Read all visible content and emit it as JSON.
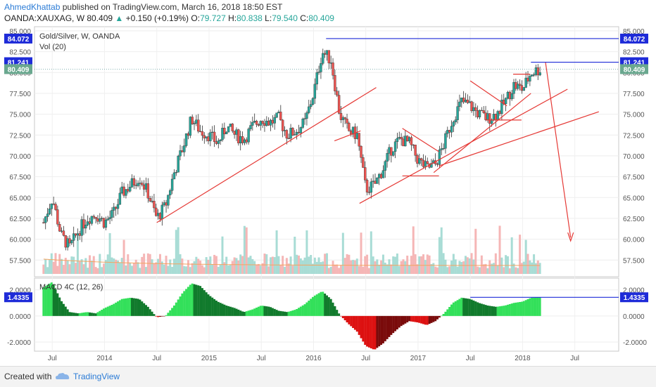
{
  "header": {
    "author": "AhmedKhattab",
    "published_text": "published on TradingView.com, March 16, 2018 18:50 EST",
    "symbol": "OANDA:XAUXAG, W",
    "last": "80.409",
    "change": "+0.150 (+0.19%)",
    "o_label": "O:",
    "o_value": "79.727",
    "h_label": "H:",
    "h_value": "80.838",
    "l_label": "L:",
    "l_value": "79.540",
    "c_label": "C:",
    "c_value": "80.409"
  },
  "footer": {
    "created_with": "Created with",
    "brand": "TradingView"
  },
  "colors": {
    "up": "#26a69a",
    "down": "#ef5350",
    "trend": "#e53935",
    "level": "#1e2bd8",
    "macd_bright": "#33e05a",
    "macd_dark": "#117a2c",
    "macd_red": "#dd1111",
    "macd_darkred": "#7a0b0b"
  },
  "chart_data": [
    {
      "type": "candlestick",
      "title": "Gold/Silver, W, OANDA",
      "volume_label": "Vol (20)",
      "ylim": [
        55.5,
        85.5
      ],
      "y_ticks": [
        "85.000",
        "82.500",
        "80.000",
        "77.500",
        "75.000",
        "72.500",
        "70.000",
        "67.500",
        "65.000",
        "62.500",
        "60.000",
        "57.500"
      ],
      "x_ticks": [
        "Jul",
        "2014",
        "Jul",
        "2015",
        "Jul",
        "2016",
        "Jul",
        "2017",
        "Jul",
        "2018",
        "Jul"
      ],
      "price_labels": {
        "resistance": "84.072",
        "recent_high": "81.241",
        "last": "80.409"
      },
      "anchors": [
        {
          "t": "2013-06",
          "c": 62.0
        },
        {
          "t": "2013-07",
          "c": 65.0
        },
        {
          "t": "2013-08",
          "c": 60.5
        },
        {
          "t": "2013-09",
          "c": 59.0
        },
        {
          "t": "2013-10",
          "c": 61.0
        },
        {
          "t": "2013-11",
          "c": 62.5
        },
        {
          "t": "2013-12",
          "c": 63.0
        },
        {
          "t": "2014-01",
          "c": 62.0
        },
        {
          "t": "2014-02",
          "c": 63.0
        },
        {
          "t": "2014-03",
          "c": 65.5
        },
        {
          "t": "2014-04",
          "c": 66.5
        },
        {
          "t": "2014-05",
          "c": 67.5
        },
        {
          "t": "2014-06",
          "c": 65.5
        },
        {
          "t": "2014-07",
          "c": 62.5
        },
        {
          "t": "2014-08",
          "c": 64.0
        },
        {
          "t": "2014-09",
          "c": 68.0
        },
        {
          "t": "2014-10",
          "c": 71.0
        },
        {
          "t": "2014-11",
          "c": 74.5
        },
        {
          "t": "2014-12",
          "c": 73.0
        },
        {
          "t": "2015-01",
          "c": 72.5
        },
        {
          "t": "2015-02",
          "c": 71.5
        },
        {
          "t": "2015-03",
          "c": 73.5
        },
        {
          "t": "2015-04",
          "c": 72.5
        },
        {
          "t": "2015-05",
          "c": 72.0
        },
        {
          "t": "2015-06",
          "c": 73.5
        },
        {
          "t": "2015-07",
          "c": 74.5
        },
        {
          "t": "2015-08",
          "c": 74.0
        },
        {
          "t": "2015-09",
          "c": 74.5
        },
        {
          "t": "2015-10",
          "c": 72.5
        },
        {
          "t": "2015-11",
          "c": 73.0
        },
        {
          "t": "2015-12",
          "c": 74.0
        },
        {
          "t": "2016-01",
          "c": 77.5
        },
        {
          "t": "2016-02",
          "c": 82.5
        },
        {
          "t": "2016-03",
          "c": 81.5
        },
        {
          "t": "2016-04",
          "c": 75.0
        },
        {
          "t": "2016-05",
          "c": 73.0
        },
        {
          "t": "2016-06",
          "c": 72.5
        },
        {
          "t": "2016-07",
          "c": 66.0
        },
        {
          "t": "2016-08",
          "c": 66.5
        },
        {
          "t": "2016-09",
          "c": 68.5
        },
        {
          "t": "2016-10",
          "c": 71.0
        },
        {
          "t": "2016-11",
          "c": 72.0
        },
        {
          "t": "2016-12",
          "c": 71.5
        },
        {
          "t": "2017-01",
          "c": 69.5
        },
        {
          "t": "2017-02",
          "c": 68.5
        },
        {
          "t": "2017-03",
          "c": 69.0
        },
        {
          "t": "2017-04",
          "c": 71.5
        },
        {
          "t": "2017-05",
          "c": 74.5
        },
        {
          "t": "2017-06",
          "c": 76.5
        },
        {
          "t": "2017-07",
          "c": 76.0
        },
        {
          "t": "2017-08",
          "c": 75.0
        },
        {
          "t": "2017-09",
          "c": 74.5
        },
        {
          "t": "2017-10",
          "c": 75.0
        },
        {
          "t": "2017-11",
          "c": 76.5
        },
        {
          "t": "2017-12",
          "c": 78.5
        },
        {
          "t": "2018-01",
          "c": 78.0
        },
        {
          "t": "2018-02",
          "c": 80.0
        },
        {
          "t": "2018-03",
          "c": 80.4
        }
      ]
    },
    {
      "type": "bar",
      "title": "MACD 4C (12, 26)",
      "ylim": [
        -2.7,
        2.9
      ],
      "y_ticks": [
        "2.0000",
        "0.0000",
        "-2.0000"
      ],
      "last_label": "1.4335",
      "anchors": [
        {
          "t": "2013-06",
          "v": 2.2
        },
        {
          "t": "2013-07",
          "v": 2.6
        },
        {
          "t": "2013-08",
          "v": 1.2
        },
        {
          "t": "2013-09",
          "v": 0.3
        },
        {
          "t": "2013-10",
          "v": 0.2
        },
        {
          "t": "2013-11",
          "v": 0.3
        },
        {
          "t": "2013-12",
          "v": 0.2
        },
        {
          "t": "2014-01",
          "v": 0.6
        },
        {
          "t": "2014-02",
          "v": 0.9
        },
        {
          "t": "2014-03",
          "v": 1.3
        },
        {
          "t": "2014-04",
          "v": 1.4
        },
        {
          "t": "2014-05",
          "v": 1.3
        },
        {
          "t": "2014-06",
          "v": 0.7
        },
        {
          "t": "2014-07",
          "v": -0.1
        },
        {
          "t": "2014-08",
          "v": 0.0
        },
        {
          "t": "2014-09",
          "v": 0.8
        },
        {
          "t": "2014-10",
          "v": 1.8
        },
        {
          "t": "2014-11",
          "v": 2.5
        },
        {
          "t": "2014-12",
          "v": 2.3
        },
        {
          "t": "2015-01",
          "v": 1.6
        },
        {
          "t": "2015-02",
          "v": 1.1
        },
        {
          "t": "2015-03",
          "v": 0.8
        },
        {
          "t": "2015-04",
          "v": 0.6
        },
        {
          "t": "2015-05",
          "v": 0.3
        },
        {
          "t": "2015-06",
          "v": 0.5
        },
        {
          "t": "2015-07",
          "v": 0.8
        },
        {
          "t": "2015-08",
          "v": 0.7
        },
        {
          "t": "2015-09",
          "v": 0.4
        },
        {
          "t": "2015-10",
          "v": 0.3
        },
        {
          "t": "2015-11",
          "v": 0.5
        },
        {
          "t": "2015-12",
          "v": 0.9
        },
        {
          "t": "2016-01",
          "v": 1.5
        },
        {
          "t": "2016-02",
          "v": 1.9
        },
        {
          "t": "2016-03",
          "v": 1.3
        },
        {
          "t": "2016-04",
          "v": 0.1
        },
        {
          "t": "2016-05",
          "v": -0.6
        },
        {
          "t": "2016-06",
          "v": -1.2
        },
        {
          "t": "2016-07",
          "v": -2.3
        },
        {
          "t": "2016-08",
          "v": -2.6
        },
        {
          "t": "2016-09",
          "v": -2.1
        },
        {
          "t": "2016-10",
          "v": -1.4
        },
        {
          "t": "2016-11",
          "v": -0.8
        },
        {
          "t": "2016-12",
          "v": -0.4
        },
        {
          "t": "2017-01",
          "v": -0.5
        },
        {
          "t": "2017-02",
          "v": -0.7
        },
        {
          "t": "2017-03",
          "v": -0.4
        },
        {
          "t": "2017-04",
          "v": 0.2
        },
        {
          "t": "2017-05",
          "v": 1.0
        },
        {
          "t": "2017-06",
          "v": 1.4
        },
        {
          "t": "2017-07",
          "v": 1.3
        },
        {
          "t": "2017-08",
          "v": 1.0
        },
        {
          "t": "2017-09",
          "v": 0.8
        },
        {
          "t": "2017-10",
          "v": 0.7
        },
        {
          "t": "2017-11",
          "v": 0.8
        },
        {
          "t": "2017-12",
          "v": 1.0
        },
        {
          "t": "2018-01",
          "v": 1.1
        },
        {
          "t": "2018-02",
          "v": 1.4
        },
        {
          "t": "2018-03",
          "v": 1.43
        }
      ]
    }
  ]
}
